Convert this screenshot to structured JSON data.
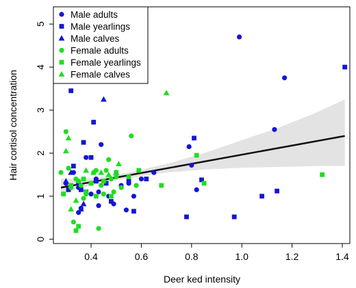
{
  "chart_data": {
    "type": "scatter",
    "xlabel": "Deer ked intensity",
    "ylabel": "Hair cortisol concentration",
    "xlim": [
      0.25,
      1.43
    ],
    "ylim": [
      -0.1,
      5.4
    ],
    "xticks": [
      "0.4",
      "0.6",
      "0.8",
      "1.0",
      "1.2",
      "1.4"
    ],
    "yticks": [
      "0",
      "1",
      "2",
      "3",
      "4",
      "5"
    ],
    "xtick_values": [
      0.4,
      0.6,
      0.8,
      1.0,
      1.2,
      1.4
    ],
    "ytick_values": [
      0,
      1,
      2,
      3,
      4,
      5
    ],
    "legend_position": "top-left",
    "fit_line": {
      "x": [
        0.28,
        1.41
      ],
      "y": [
        1.2,
        2.4
      ]
    },
    "confidence_band": {
      "x": [
        0.28,
        0.4,
        0.55,
        0.7,
        0.85,
        1.0,
        1.15,
        1.3,
        1.41
      ],
      "lower": [
        1.05,
        1.25,
        1.42,
        1.55,
        1.62,
        1.66,
        1.68,
        1.7,
        1.7
      ],
      "upper": [
        1.4,
        1.42,
        1.55,
        1.75,
        2.0,
        2.3,
        2.6,
        2.95,
        3.25
      ]
    },
    "series": [
      {
        "name": "Male adults",
        "color": "#1515d6",
        "marker": "circle",
        "points": [
          [
            0.3,
            1.3
          ],
          [
            0.33,
            1.55
          ],
          [
            0.35,
            1.2
          ],
          [
            0.36,
            0.72
          ],
          [
            0.38,
            1.9
          ],
          [
            0.4,
            1.05
          ],
          [
            0.42,
            1.4
          ],
          [
            0.43,
            1.1
          ],
          [
            0.44,
            2.2
          ],
          [
            0.47,
            1.0
          ],
          [
            0.49,
            0.82
          ],
          [
            0.52,
            1.25
          ],
          [
            0.55,
            1.3
          ],
          [
            0.57,
            1.0
          ],
          [
            0.6,
            1.4
          ],
          [
            0.65,
            1.55
          ],
          [
            0.79,
            2.15
          ],
          [
            0.8,
            1.72
          ],
          [
            0.82,
            1.15
          ],
          [
            0.99,
            4.7
          ],
          [
            1.13,
            2.55
          ],
          [
            1.17,
            3.75
          ],
          [
            0.43,
            0.78
          ],
          [
            0.35,
            0.62
          ],
          [
            0.54,
            0.68
          ]
        ]
      },
      {
        "name": "Male yearlings",
        "color": "#1515d6",
        "marker": "square",
        "points": [
          [
            0.31,
            1.15
          ],
          [
            0.32,
            3.45
          ],
          [
            0.33,
            1.7
          ],
          [
            0.35,
            1.3
          ],
          [
            0.37,
            2.25
          ],
          [
            0.38,
            1.1
          ],
          [
            0.4,
            1.9
          ],
          [
            0.41,
            2.72
          ],
          [
            0.42,
            1.35
          ],
          [
            0.46,
            1.3
          ],
          [
            0.48,
            0.88
          ],
          [
            0.55,
            1.35
          ],
          [
            0.57,
            0.65
          ],
          [
            0.62,
            1.4
          ],
          [
            0.78,
            0.52
          ],
          [
            0.81,
            2.35
          ],
          [
            0.84,
            1.38
          ],
          [
            0.97,
            0.52
          ],
          [
            1.08,
            1.0
          ],
          [
            1.14,
            1.12
          ],
          [
            1.41,
            4.0
          ],
          [
            0.36,
            1.15
          ]
        ]
      },
      {
        "name": "Male calves",
        "color": "#1515d6",
        "marker": "triangle",
        "points": [
          [
            0.3,
            1.35
          ],
          [
            0.32,
            1.55
          ],
          [
            0.36,
            0.7
          ],
          [
            0.37,
            0.82
          ],
          [
            0.45,
            3.25
          ],
          [
            0.5,
            1.55
          ]
        ]
      },
      {
        "name": "Female adults",
        "color": "#20dd20",
        "marker": "circle",
        "points": [
          [
            0.28,
            1.55
          ],
          [
            0.3,
            2.5
          ],
          [
            0.31,
            1.65
          ],
          [
            0.32,
            1.2
          ],
          [
            0.33,
            0.4
          ],
          [
            0.34,
            1.4
          ],
          [
            0.35,
            1.35
          ],
          [
            0.36,
            1.25
          ],
          [
            0.37,
            0.95
          ],
          [
            0.38,
            1.1
          ],
          [
            0.4,
            1.3
          ],
          [
            0.41,
            1.55
          ],
          [
            0.42,
            1.6
          ],
          [
            0.43,
            0.25
          ],
          [
            0.44,
            1.25
          ],
          [
            0.46,
            1.6
          ],
          [
            0.47,
            1.85
          ],
          [
            0.48,
            1.4
          ],
          [
            0.5,
            1.45
          ],
          [
            0.52,
            1.2
          ],
          [
            0.56,
            2.4
          ],
          [
            0.58,
            1.25
          ],
          [
            0.38,
            1.05
          ],
          [
            0.45,
            1.05
          ],
          [
            0.49,
            1.1
          ]
        ]
      },
      {
        "name": "Female yearlings",
        "color": "#20dd20",
        "marker": "square",
        "points": [
          [
            0.29,
            1.05
          ],
          [
            0.32,
            1.25
          ],
          [
            0.34,
            0.2
          ],
          [
            0.35,
            0.3
          ],
          [
            0.37,
            1.4
          ],
          [
            0.4,
            1.3
          ],
          [
            0.42,
            1.0
          ],
          [
            0.45,
            1.35
          ],
          [
            0.48,
            1.0
          ],
          [
            0.5,
            1.55
          ],
          [
            0.55,
            1.45
          ],
          [
            0.59,
            1.6
          ],
          [
            0.68,
            1.25
          ],
          [
            0.82,
            1.95
          ],
          [
            0.85,
            1.3
          ],
          [
            1.32,
            1.5
          ]
        ]
      },
      {
        "name": "Female calves",
        "color": "#20dd20",
        "marker": "triangle",
        "points": [
          [
            0.3,
            2.05
          ],
          [
            0.31,
            2.35
          ],
          [
            0.32,
            0.7
          ],
          [
            0.34,
            0.9
          ],
          [
            0.38,
            1.6
          ],
          [
            0.41,
            1.55
          ],
          [
            0.44,
            1.55
          ],
          [
            0.47,
            1.5
          ],
          [
            0.51,
            1.75
          ],
          [
            0.7,
            3.4
          ]
        ]
      }
    ]
  }
}
